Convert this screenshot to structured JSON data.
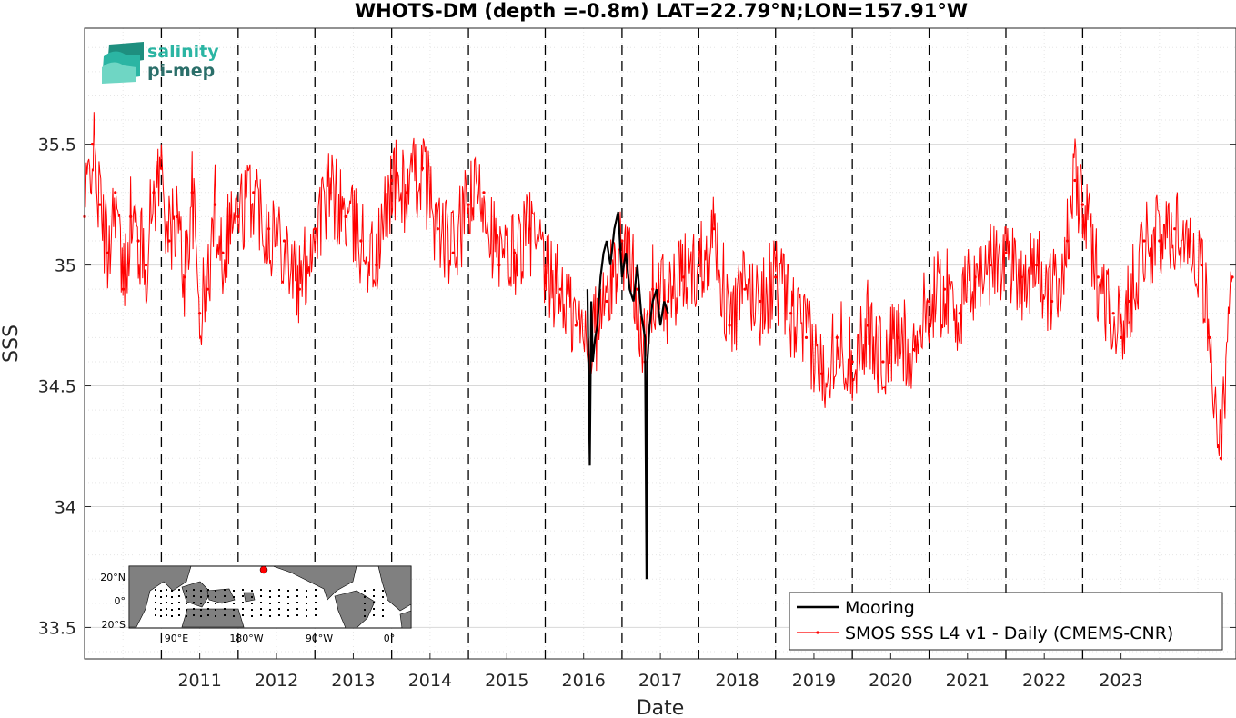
{
  "chart_data": {
    "type": "line",
    "title": "WHOTS-DM (depth =-0.8m) LAT=22.79°N;LON=157.91°W",
    "xlabel": "Date",
    "ylabel": "SSS",
    "xlim": [
      "2010-01-01",
      "2024-12-31"
    ],
    "ylim": [
      33.37,
      35.98
    ],
    "yticks": [
      33.5,
      34,
      34.5,
      35,
      35.5
    ],
    "ytick_labels": [
      "33.5",
      "34",
      "34.5",
      "35",
      "35.5"
    ],
    "xtick_labels": [
      "2011",
      "2012",
      "2013",
      "2014",
      "2015",
      "2016",
      "2017",
      "2018",
      "2019",
      "2020",
      "2021",
      "2022",
      "2023"
    ],
    "year_lines": [
      2011,
      2012,
      2013,
      2014,
      2015,
      2016,
      2017,
      2018,
      2019,
      2020,
      2021,
      2022,
      2023
    ],
    "grid": true,
    "legend": "bottom-right",
    "series": [
      {
        "name": "Mooring",
        "color": "#000000",
        "x": [
          2016.55,
          2016.58,
          2016.6,
          2016.62,
          2016.65,
          2016.68,
          2016.72,
          2016.76,
          2016.8,
          2016.85,
          2016.9,
          2016.95,
          2017.0,
          2017.05,
          2017.1,
          2017.15,
          2017.2,
          2017.25,
          2017.3,
          2017.32,
          2017.33,
          2017.36,
          2017.4,
          2017.45,
          2017.5,
          2017.55,
          2017.6
        ],
        "y": [
          34.9,
          34.17,
          34.85,
          34.6,
          34.7,
          34.75,
          34.95,
          35.05,
          35.1,
          35.0,
          35.15,
          35.22,
          34.95,
          35.05,
          34.9,
          34.85,
          35.0,
          34.8,
          34.7,
          33.7,
          34.6,
          34.75,
          34.85,
          34.9,
          34.75,
          34.85,
          34.8
        ]
      },
      {
        "name": "SMOS SSS L4 v1 - Daily (CMEMS-CNR)",
        "color": "#ff0000",
        "x": [
          2010.0,
          2010.1,
          2010.2,
          2010.3,
          2010.4,
          2010.5,
          2010.6,
          2010.7,
          2010.8,
          2010.9,
          2011.0,
          2011.1,
          2011.2,
          2011.3,
          2011.4,
          2011.5,
          2011.6,
          2011.7,
          2011.8,
          2011.9,
          2012.0,
          2012.2,
          2012.4,
          2012.6,
          2012.8,
          2013.0,
          2013.2,
          2013.4,
          2013.6,
          2013.8,
          2014.0,
          2014.2,
          2014.4,
          2014.6,
          2014.8,
          2015.0,
          2015.2,
          2015.4,
          2015.6,
          2015.8,
          2016.0,
          2016.2,
          2016.4,
          2016.6,
          2016.8,
          2017.0,
          2017.2,
          2017.3,
          2017.4,
          2017.6,
          2017.8,
          2018.0,
          2018.2,
          2018.4,
          2018.6,
          2018.8,
          2019.0,
          2019.2,
          2019.4,
          2019.6,
          2019.8,
          2020.0,
          2020.2,
          2020.4,
          2020.6,
          2020.8,
          2021.0,
          2021.2,
          2021.4,
          2021.6,
          2021.8,
          2022.0,
          2022.2,
          2022.4,
          2022.6,
          2022.8,
          2022.9,
          2023.0,
          2023.2,
          2023.4,
          2023.5,
          2023.6,
          2023.8,
          2024.0,
          2024.2,
          2024.4,
          2024.55,
          2024.65,
          2024.8,
          2024.95
        ],
        "y": [
          35.2,
          35.5,
          35.25,
          35.05,
          35.3,
          34.9,
          35.2,
          35.1,
          35.0,
          35.3,
          35.4,
          35.1,
          35.2,
          34.95,
          35.3,
          34.8,
          34.9,
          35.25,
          35.05,
          35.2,
          35.2,
          35.3,
          35.15,
          35.1,
          34.9,
          35.15,
          35.3,
          35.2,
          35.1,
          35.0,
          35.35,
          35.3,
          35.4,
          35.15,
          35.05,
          35.25,
          35.3,
          35.0,
          35.05,
          35.15,
          34.95,
          34.9,
          34.75,
          34.7,
          34.85,
          35.1,
          34.9,
          34.6,
          34.9,
          34.85,
          34.95,
          35.0,
          35.15,
          34.75,
          34.9,
          34.85,
          34.95,
          34.8,
          34.7,
          34.55,
          34.7,
          34.6,
          34.75,
          34.6,
          34.7,
          34.65,
          34.85,
          34.9,
          34.8,
          34.95,
          35.0,
          35.05,
          34.95,
          35.0,
          34.85,
          35.1,
          35.35,
          35.25,
          34.95,
          34.8,
          34.7,
          34.85,
          35.1,
          35.1,
          35.15,
          35.1,
          35.0,
          34.7,
          34.2,
          34.95
        ]
      }
    ]
  },
  "logo": {
    "line1": "salinity",
    "line2": "pi-mep"
  },
  "inset_map": {
    "ytick_labels": [
      "20°N",
      "0°",
      "20°S"
    ],
    "xtick_labels": [
      "90°E",
      "180°W",
      "90°W",
      "0°"
    ]
  }
}
